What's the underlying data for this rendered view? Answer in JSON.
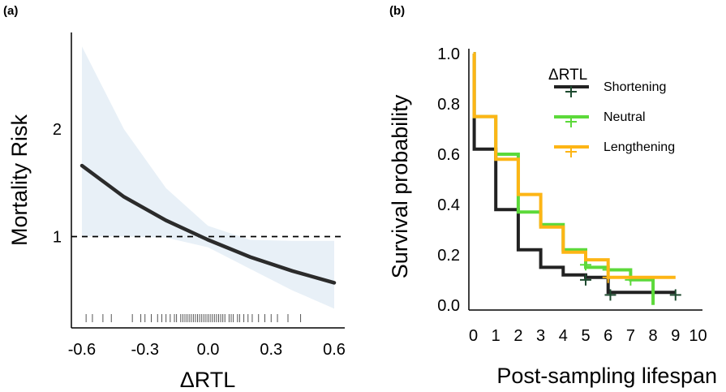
{
  "chart_data": [
    {
      "panel": "(a)",
      "type": "line",
      "xlabel": "ΔRTL",
      "ylabel": "Mortality Risk",
      "x_ticks": [
        "-0.6",
        "-0.3",
        "0.0",
        "0.3",
        "0.6"
      ],
      "y_ticks": [
        "1",
        "2"
      ],
      "xlim": [
        -0.65,
        0.65
      ],
      "ylim": [
        0.15,
        2.9
      ],
      "reference_line": 1,
      "series": [
        {
          "x": [
            -0.6,
            -0.4,
            -0.2,
            0.0,
            0.2,
            0.4,
            0.6
          ],
          "y": [
            1.66,
            1.37,
            1.15,
            0.97,
            0.81,
            0.68,
            0.57
          ],
          "ci_lower": [
            1.0,
            1.0,
            0.99,
            0.9,
            0.7,
            0.5,
            0.33
          ],
          "ci_upper": [
            2.77,
            2.0,
            1.45,
            1.1,
            0.97,
            0.96,
            0.96
          ],
          "color": "#2b2b2b",
          "band_color": "#e8f0f7"
        }
      ],
      "rug": [
        -0.58,
        -0.55,
        -0.5,
        -0.46,
        -0.36,
        -0.32,
        -0.3,
        -0.27,
        -0.24,
        -0.22,
        -0.2,
        -0.18,
        -0.16,
        -0.15,
        -0.13,
        -0.12,
        -0.11,
        -0.1,
        -0.09,
        -0.08,
        -0.07,
        -0.06,
        -0.05,
        -0.04,
        -0.03,
        -0.02,
        -0.01,
        0.0,
        0.01,
        0.02,
        0.03,
        0.04,
        0.05,
        0.06,
        0.07,
        0.08,
        0.1,
        0.11,
        0.12,
        0.14,
        0.15,
        0.17,
        0.19,
        0.21,
        0.24,
        0.27,
        0.3,
        0.33,
        0.38,
        0.44
      ],
      "grid": false
    },
    {
      "panel": "(b)",
      "type": "line",
      "step": true,
      "xlabel": "Post-sampling lifespan",
      "ylabel": "Survival probability",
      "x_ticks": [
        "0",
        "1",
        "2",
        "3",
        "4",
        "5",
        "6",
        "7",
        "8",
        "9",
        "10"
      ],
      "y_ticks": [
        "0.0",
        "0.2",
        "0.4",
        "0.6",
        "0.8",
        "1.0"
      ],
      "xlim": [
        -0.2,
        10.2
      ],
      "ylim": [
        -0.02,
        1.02
      ],
      "legend_title": "ΔRTL",
      "legend_position": "top-right",
      "series": [
        {
          "name": "Shortening",
          "color": "#222222",
          "censor_color": "#1d4a2f",
          "times": [
            0,
            0.04,
            1,
            2,
            3,
            4,
            5,
            6,
            7,
            8,
            9
          ],
          "surv": [
            1.0,
            0.62,
            0.38,
            0.22,
            0.15,
            0.12,
            0.11,
            0.05,
            0.05,
            0.05,
            0.05
          ],
          "end": 9,
          "censored": [
            [
              5,
              0.1
            ],
            [
              6.1,
              0.04
            ],
            [
              9,
              0.04
            ]
          ]
        },
        {
          "name": "Neutral",
          "color": "#5cd93a",
          "censor_color": "#5cd93a",
          "times": [
            0,
            0.04,
            1,
            2,
            3,
            4,
            5,
            6,
            7,
            8
          ],
          "surv": [
            1.0,
            0.75,
            0.6,
            0.37,
            0.32,
            0.22,
            0.15,
            0.14,
            0.1,
            0.0
          ],
          "end": 8,
          "censored": [
            [
              5,
              0.16
            ],
            [
              6,
              0.14
            ],
            [
              7,
              0.1
            ]
          ]
        },
        {
          "name": "Lengthening",
          "color": "#fdb515",
          "censor_color": "#fdb515",
          "times": [
            0,
            0.04,
            1,
            2,
            3,
            4,
            5,
            6,
            7,
            8
          ],
          "surv": [
            1.0,
            0.75,
            0.58,
            0.44,
            0.31,
            0.21,
            0.18,
            0.11,
            0.11,
            0.11
          ],
          "end": 9,
          "censored": [
            [
              6,
              0.11
            ]
          ]
        }
      ],
      "grid": false
    }
  ]
}
